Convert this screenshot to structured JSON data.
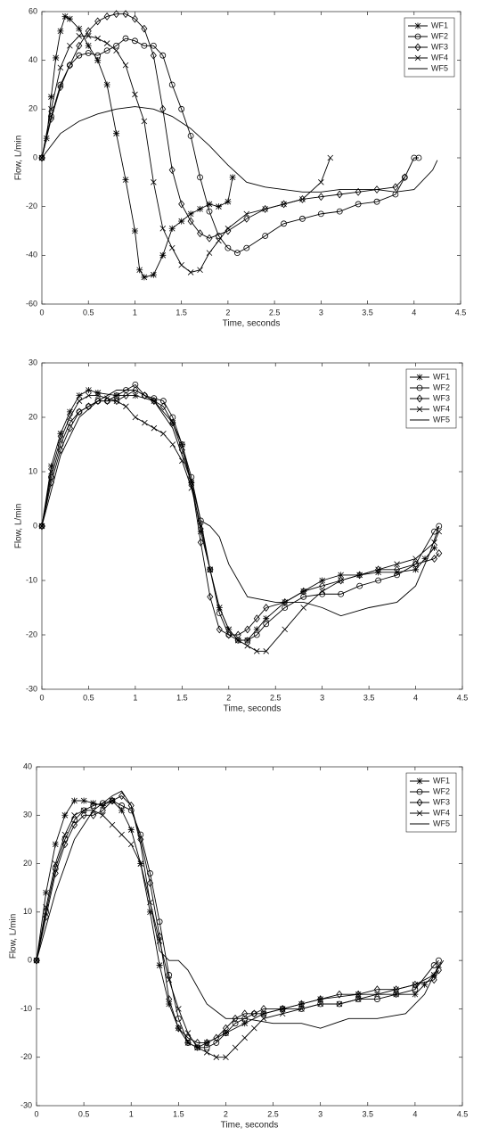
{
  "chart_data": [
    {
      "type": "line",
      "xlabel": "Time, seconds",
      "ylabel": "Flow, L/min",
      "xlim": [
        0,
        4.5
      ],
      "ylim": [
        -60,
        60
      ],
      "xticks": [
        0,
        0.5,
        1,
        1.5,
        2,
        2.5,
        3,
        3.5,
        4,
        4.5
      ],
      "yticks": [
        -60,
        -40,
        -20,
        0,
        20,
        40,
        60
      ],
      "grid": false,
      "legend": "upper right",
      "series": [
        {
          "name": "WF1",
          "color": "#000000",
          "marker": "asterisk",
          "x": [
            0,
            0.05,
            0.1,
            0.15,
            0.2,
            0.25,
            0.3,
            0.4,
            0.5,
            0.6,
            0.7,
            0.8,
            0.9,
            1.0,
            1.05,
            1.1,
            1.2,
            1.3,
            1.4,
            1.5,
            1.6,
            1.7,
            1.8,
            1.9,
            2.0,
            2.05
          ],
          "values": [
            0,
            8,
            25,
            41,
            52,
            58,
            57,
            53,
            46,
            40,
            30,
            10,
            -9,
            -30,
            -46,
            -49,
            -48,
            -40,
            -29,
            -26,
            -23,
            -21,
            -19,
            -20,
            -18,
            -8
          ]
        },
        {
          "name": "WF2",
          "color": "#000000",
          "marker": "circle",
          "x": [
            0,
            0.1,
            0.2,
            0.3,
            0.4,
            0.5,
            0.6,
            0.7,
            0.8,
            0.9,
            1.0,
            1.1,
            1.2,
            1.3,
            1.4,
            1.5,
            1.6,
            1.7,
            1.8,
            1.9,
            2.0,
            2.1,
            2.2,
            2.4,
            2.6,
            2.8,
            3.0,
            3.2,
            3.4,
            3.6,
            3.8,
            3.9,
            4.0,
            4.05
          ],
          "values": [
            0,
            17,
            30,
            38,
            42,
            43,
            42,
            44,
            46,
            49,
            48,
            46,
            46,
            42,
            30,
            20,
            9,
            -8,
            -22,
            -32,
            -37,
            -39,
            -37,
            -32,
            -27,
            -25,
            -23,
            -22,
            -19,
            -18,
            -15,
            -8,
            0,
            0
          ]
        },
        {
          "name": "WF3",
          "color": "#000000",
          "marker": "diamond",
          "x": [
            0,
            0.1,
            0.2,
            0.3,
            0.4,
            0.5,
            0.6,
            0.7,
            0.8,
            0.9,
            1.0,
            1.1,
            1.2,
            1.3,
            1.4,
            1.5,
            1.6,
            1.7,
            1.8,
            2.0,
            2.2,
            2.4,
            2.6,
            2.8,
            3.0,
            3.2,
            3.4,
            3.6,
            3.8,
            3.9
          ],
          "values": [
            0,
            16,
            29,
            38,
            46,
            52,
            56,
            58,
            59,
            59,
            57,
            53,
            42,
            20,
            -5,
            -19,
            -26,
            -31,
            -33,
            -30,
            -25,
            -21,
            -19,
            -17,
            -16,
            -15,
            -14,
            -13,
            -12,
            -8
          ]
        },
        {
          "name": "WF4",
          "color": "#000000",
          "marker": "x",
          "x": [
            0,
            0.1,
            0.2,
            0.3,
            0.4,
            0.5,
            0.6,
            0.7,
            0.8,
            0.9,
            1.0,
            1.1,
            1.2,
            1.3,
            1.4,
            1.5,
            1.6,
            1.7,
            1.8,
            1.9,
            2.0,
            2.2,
            2.4,
            2.6,
            2.8,
            3.0,
            3.1
          ],
          "values": [
            0,
            20,
            37,
            46,
            50,
            50,
            49,
            47,
            44,
            38,
            26,
            15,
            -10,
            -29,
            -37,
            -44,
            -47,
            -46,
            -39,
            -34,
            -29,
            -23,
            -21,
            -19,
            -17,
            -10,
            0
          ]
        },
        {
          "name": "WF5",
          "color": "#000000",
          "marker": "none",
          "x": [
            0,
            0.2,
            0.4,
            0.6,
            0.8,
            1.0,
            1.2,
            1.4,
            1.6,
            1.8,
            2.0,
            2.2,
            2.4,
            2.6,
            2.8,
            3.0,
            3.2,
            3.4,
            3.6,
            3.8,
            4.0,
            4.2,
            4.25
          ],
          "values": [
            0,
            10,
            15,
            18,
            20,
            21,
            20,
            17,
            12,
            5,
            -3,
            -10,
            -12,
            -13,
            -14,
            -14,
            -13,
            -13,
            -13,
            -14,
            -13,
            -5,
            -1
          ]
        }
      ]
    },
    {
      "type": "line",
      "xlabel": "Time, seconds",
      "ylabel": "Flow, L/min",
      "xlim": [
        0,
        4.5
      ],
      "ylim": [
        -30,
        30
      ],
      "xticks": [
        0,
        0.5,
        1,
        1.5,
        2,
        2.5,
        3,
        3.5,
        4,
        4.5
      ],
      "yticks": [
        -30,
        -20,
        -10,
        0,
        10,
        20,
        30
      ],
      "grid": false,
      "legend": "upper right",
      "series": [
        {
          "name": "WF1",
          "color": "#000000",
          "marker": "asterisk",
          "x": [
            0,
            0.1,
            0.2,
            0.3,
            0.4,
            0.5,
            0.6,
            0.8,
            1.0,
            1.2,
            1.4,
            1.5,
            1.6,
            1.7,
            1.8,
            1.9,
            2.0,
            2.1,
            2.2,
            2.3,
            2.4,
            2.6,
            2.8,
            3.0,
            3.2,
            3.4,
            3.6,
            3.8,
            4.0,
            4.1,
            4.2
          ],
          "values": [
            0,
            11,
            17,
            21,
            24,
            25,
            24.5,
            24,
            24,
            23,
            19,
            15,
            8,
            -1,
            -8,
            -15,
            -19,
            -21,
            -21,
            -19,
            -17,
            -14,
            -12,
            -10,
            -9,
            -9,
            -8.5,
            -8.5,
            -8,
            -6,
            -4
          ]
        },
        {
          "name": "WF2",
          "color": "#000000",
          "marker": "circle",
          "x": [
            0,
            0.1,
            0.2,
            0.3,
            0.4,
            0.5,
            0.6,
            0.7,
            0.8,
            0.9,
            1.0,
            1.1,
            1.2,
            1.3,
            1.4,
            1.5,
            1.6,
            1.7,
            1.8,
            1.9,
            2.0,
            2.1,
            2.2,
            2.3,
            2.4,
            2.6,
            2.8,
            3.0,
            3.2,
            3.4,
            3.6,
            3.8,
            4.0,
            4.2,
            4.25
          ],
          "values": [
            0,
            9,
            15,
            19,
            21,
            22,
            23,
            23,
            24,
            25,
            26,
            24,
            23.5,
            23,
            20,
            15,
            9,
            1,
            -8,
            -16,
            -20,
            -21,
            -21,
            -20,
            -18,
            -15,
            -13,
            -12.5,
            -12.5,
            -11,
            -10,
            -9,
            -7,
            -1,
            0
          ]
        },
        {
          "name": "WF3",
          "color": "#000000",
          "marker": "diamond",
          "x": [
            0,
            0.1,
            0.2,
            0.3,
            0.4,
            0.5,
            0.6,
            0.7,
            0.8,
            0.9,
            1.0,
            1.1,
            1.2,
            1.3,
            1.4,
            1.5,
            1.6,
            1.7,
            1.8,
            1.9,
            2.0,
            2.1,
            2.2,
            2.3,
            2.4,
            2.6,
            2.8,
            3.0,
            3.2,
            3.4,
            3.6,
            3.8,
            4.0,
            4.2,
            4.25
          ],
          "values": [
            0,
            8,
            14,
            18,
            21,
            22,
            23,
            23,
            23,
            24,
            25,
            24,
            23,
            22,
            19,
            14,
            8,
            -3,
            -13,
            -19,
            -20,
            -20,
            -19,
            -17,
            -15,
            -14,
            -12,
            -11,
            -10,
            -9,
            -8,
            -8,
            -7,
            -6,
            -5
          ]
        },
        {
          "name": "WF4",
          "color": "#000000",
          "marker": "x",
          "x": [
            0,
            0.1,
            0.2,
            0.3,
            0.4,
            0.5,
            0.6,
            0.7,
            0.8,
            0.9,
            1.0,
            1.1,
            1.2,
            1.3,
            1.4,
            1.5,
            1.6,
            1.7,
            1.8,
            1.9,
            2.0,
            2.1,
            2.2,
            2.3,
            2.4,
            2.6,
            2.8,
            3.0,
            3.2,
            3.4,
            3.6,
            3.8,
            4.0,
            4.2,
            4.25
          ],
          "values": [
            0,
            10,
            16,
            20,
            23,
            24,
            24,
            23.5,
            23,
            22,
            20,
            19,
            18,
            17,
            15,
            12,
            7,
            0,
            -8,
            -15,
            -19,
            -21,
            -22,
            -23,
            -23,
            -19,
            -15,
            -12,
            -10,
            -9,
            -8,
            -7,
            -6,
            -3,
            -1
          ]
        },
        {
          "name": "WF5",
          "color": "#000000",
          "marker": "none",
          "x": [
            0,
            0.2,
            0.4,
            0.6,
            0.8,
            1.0,
            1.2,
            1.4,
            1.6,
            1.7,
            1.8,
            1.9,
            2.0,
            2.2,
            2.5,
            2.8,
            3.0,
            3.2,
            3.5,
            3.8,
            4.0,
            4.15,
            4.25
          ],
          "values": [
            0,
            13,
            20,
            23,
            25,
            25,
            23,
            18,
            8,
            1,
            0,
            -2,
            -7,
            -13,
            -14,
            -14,
            -15,
            -16.5,
            -15,
            -14,
            -11,
            -5,
            0
          ]
        }
      ]
    },
    {
      "type": "line",
      "xlabel": "Time, seconds",
      "ylabel": "Flow, L/min",
      "xlim": [
        0,
        4.5
      ],
      "ylim": [
        -30,
        40
      ],
      "xticks": [
        0,
        0.5,
        1,
        1.5,
        2,
        2.5,
        3,
        3.5,
        4,
        4.5
      ],
      "yticks": [
        -30,
        -20,
        -10,
        0,
        10,
        20,
        30,
        40
      ],
      "grid": false,
      "legend": "upper right",
      "series": [
        {
          "name": "WF1",
          "color": "#000000",
          "marker": "asterisk",
          "x": [
            0,
            0.1,
            0.2,
            0.3,
            0.4,
            0.5,
            0.6,
            0.7,
            0.8,
            0.9,
            1.0,
            1.1,
            1.2,
            1.3,
            1.4,
            1.5,
            1.6,
            1.7,
            1.8,
            2.0,
            2.2,
            2.4,
            2.6,
            2.8,
            3.0,
            3.4,
            3.8,
            4.0,
            4.1,
            4.2
          ],
          "values": [
            0,
            14,
            24,
            30,
            33,
            33,
            32.5,
            32,
            33,
            31,
            27,
            20,
            10,
            -1,
            -9,
            -14,
            -17,
            -18,
            -17,
            -15,
            -13,
            -11,
            -10,
            -9,
            -8,
            -7,
            -7,
            -7,
            -5,
            -3
          ]
        },
        {
          "name": "WF2",
          "color": "#000000",
          "marker": "circle",
          "x": [
            0,
            0.1,
            0.2,
            0.3,
            0.4,
            0.5,
            0.6,
            0.7,
            0.8,
            0.9,
            1.0,
            1.1,
            1.2,
            1.3,
            1.4,
            1.5,
            1.6,
            1.7,
            1.8,
            1.9,
            2.0,
            2.1,
            2.2,
            2.3,
            2.4,
            2.6,
            2.8,
            3.0,
            3.2,
            3.4,
            3.6,
            3.8,
            4.0,
            4.2,
            4.25
          ],
          "values": [
            0,
            10,
            19,
            25,
            29,
            31,
            32,
            32.5,
            33,
            32,
            31,
            26,
            18,
            8,
            -3,
            -12,
            -17,
            -18,
            -18,
            -17,
            -15,
            -13,
            -12,
            -11,
            -11,
            -10,
            -10,
            -9,
            -9,
            -8,
            -8,
            -7,
            -6,
            -1,
            0
          ]
        },
        {
          "name": "WF3",
          "color": "#000000",
          "marker": "diamond",
          "x": [
            0,
            0.1,
            0.2,
            0.3,
            0.4,
            0.5,
            0.6,
            0.7,
            0.8,
            0.9,
            1.0,
            1.1,
            1.2,
            1.3,
            1.4,
            1.5,
            1.6,
            1.7,
            1.8,
            1.9,
            2.0,
            2.1,
            2.2,
            2.3,
            2.4,
            2.6,
            2.8,
            3.0,
            3.2,
            3.4,
            3.6,
            3.8,
            4.0,
            4.2,
            4.25
          ],
          "values": [
            0,
            9,
            18,
            24,
            28,
            30,
            30,
            31,
            33,
            34,
            32,
            25,
            16,
            5,
            -8,
            -14,
            -16,
            -17,
            -17,
            -16,
            -14,
            -12,
            -11,
            -11,
            -10,
            -10,
            -9,
            -8,
            -7,
            -7,
            -6,
            -6,
            -5,
            -4,
            -2
          ]
        },
        {
          "name": "WF4",
          "color": "#000000",
          "marker": "x",
          "x": [
            0,
            0.1,
            0.2,
            0.3,
            0.4,
            0.5,
            0.6,
            0.7,
            0.8,
            0.9,
            1.0,
            1.1,
            1.2,
            1.3,
            1.4,
            1.5,
            1.6,
            1.7,
            1.8,
            1.9,
            2.0,
            2.1,
            2.2,
            2.3,
            2.4,
            2.6,
            2.8,
            3.0,
            3.2,
            3.4,
            3.6,
            3.8,
            4.0,
            4.2,
            4.25
          ],
          "values": [
            0,
            11,
            20,
            26,
            30,
            31,
            31,
            30,
            28,
            26,
            24,
            20,
            12,
            4,
            -4,
            -10,
            -15,
            -18,
            -19,
            -20,
            -20,
            -18,
            -16,
            -14,
            -12,
            -11,
            -10,
            -9,
            -9,
            -8,
            -7,
            -6,
            -5,
            -3,
            -1
          ]
        },
        {
          "name": "WF5",
          "color": "#000000",
          "marker": "none",
          "x": [
            0,
            0.2,
            0.4,
            0.6,
            0.8,
            0.9,
            1.0,
            1.1,
            1.2,
            1.3,
            1.4,
            1.5,
            1.6,
            1.8,
            2.0,
            2.2,
            2.5,
            2.8,
            3.0,
            3.3,
            3.6,
            3.9,
            4.1,
            4.2,
            4.3
          ],
          "values": [
            0,
            14,
            25,
            31,
            34,
            35,
            32,
            24,
            12,
            2,
            0,
            0,
            -2,
            -9,
            -12,
            -12,
            -13,
            -13,
            -14,
            -12,
            -12,
            -11,
            -7,
            -3,
            0
          ]
        }
      ]
    }
  ]
}
